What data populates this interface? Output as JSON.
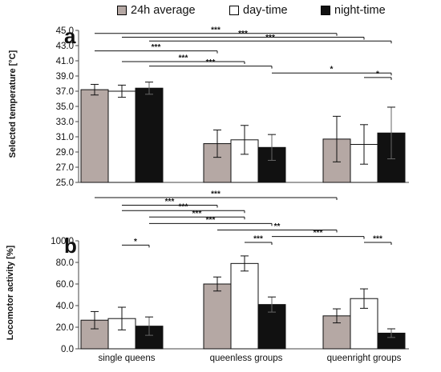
{
  "legend": [
    {
      "label": "24h average",
      "color": "#b5a8a4"
    },
    {
      "label": "day-time",
      "color": "#ffffff"
    },
    {
      "label": "night-time",
      "color": "#111111"
    }
  ],
  "chart_data": [
    {
      "type": "bar",
      "panel_letter": "a",
      "ylabel": "Selected temperature [°C]",
      "ylim": [
        25.0,
        45.0
      ],
      "yticks": [
        "25.0",
        "27.0",
        "29.0",
        "31.0",
        "33.0",
        "35.0",
        "37.0",
        "39.0",
        "41.0",
        "43.0",
        "45.0"
      ],
      "categories": [
        "single queens",
        "queenless groups",
        "queenright groups"
      ],
      "series": [
        {
          "name": "24h average",
          "values": [
            37.2,
            30.1,
            30.7
          ],
          "errors": [
            0.7,
            1.8,
            3.0
          ]
        },
        {
          "name": "day-time",
          "values": [
            37.0,
            30.6,
            30.0
          ],
          "errors": [
            0.8,
            1.9,
            2.6
          ]
        },
        {
          "name": "night-time",
          "values": [
            37.4,
            29.6,
            31.5
          ],
          "errors": [
            0.8,
            1.7,
            3.4
          ]
        }
      ],
      "significance": [
        {
          "from": [
            0,
            0
          ],
          "to": [
            2,
            0
          ],
          "y": 44.6,
          "label": "***"
        },
        {
          "from": [
            0,
            1
          ],
          "to": [
            2,
            1
          ],
          "y": 44.1,
          "label": "***"
        },
        {
          "from": [
            0,
            2
          ],
          "to": [
            2,
            2
          ],
          "y": 43.6,
          "label": "***"
        },
        {
          "from": [
            0,
            0
          ],
          "to": [
            1,
            0
          ],
          "y": 42.3,
          "label": "***"
        },
        {
          "from": [
            0,
            1
          ],
          "to": [
            1,
            1
          ],
          "y": 40.9,
          "label": "***"
        },
        {
          "from": [
            0,
            2
          ],
          "to": [
            1,
            2
          ],
          "y": 40.3,
          "label": "***"
        },
        {
          "from": [
            1,
            2
          ],
          "to": [
            2,
            2
          ],
          "y": 39.4,
          "label": "*"
        },
        {
          "from": [
            2,
            1
          ],
          "to": [
            2,
            2
          ],
          "y": 38.8,
          "label": "*"
        }
      ]
    },
    {
      "type": "bar",
      "panel_letter": "b",
      "ylabel": "Locomotor activity [%]",
      "ylim": [
        0.0,
        100.0
      ],
      "yticks": [
        "0.0",
        "20.0",
        "40.0",
        "60.0",
        "80.0",
        "100.0"
      ],
      "categories": [
        "single queens",
        "queenless groups",
        "queenright groups"
      ],
      "series": [
        {
          "name": "24h average",
          "values": [
            26.5,
            60.0,
            30.5
          ],
          "errors": [
            8.0,
            6.5,
            6.5
          ]
        },
        {
          "name": "day-time",
          "values": [
            28.0,
            79.0,
            46.5
          ],
          "errors": [
            10.5,
            7.0,
            9.0
          ]
        },
        {
          "name": "night-time",
          "values": [
            21.0,
            41.0,
            14.5
          ],
          "errors": [
            8.5,
            7.0,
            4.0
          ]
        }
      ],
      "significance": [
        {
          "from": [
            0,
            0
          ],
          "to": [
            2,
            0
          ],
          "y": 140,
          "label": "***"
        },
        {
          "from": [
            0,
            1
          ],
          "to": [
            1,
            0
          ],
          "y": 133,
          "label": "***"
        },
        {
          "from": [
            0,
            1
          ],
          "to": [
            1,
            1
          ],
          "y": 128,
          "label": "***"
        },
        {
          "from": [
            0,
            2
          ],
          "to": [
            1,
            1
          ],
          "y": 122,
          "label": "***"
        },
        {
          "from": [
            0,
            2
          ],
          "to": [
            1,
            2
          ],
          "y": 116,
          "label": "***"
        },
        {
          "from": [
            1,
            0
          ],
          "to": [
            2,
            0
          ],
          "y": 110,
          "label": "**"
        },
        {
          "from": [
            1,
            2
          ],
          "to": [
            2,
            1
          ],
          "y": 104,
          "label": "***"
        },
        {
          "from": [
            1,
            1
          ],
          "to": [
            1,
            2
          ],
          "y": 98.5,
          "label": "***"
        },
        {
          "from": [
            2,
            1
          ],
          "to": [
            2,
            2
          ],
          "y": 98.5,
          "label": "***"
        },
        {
          "from": [
            0,
            1
          ],
          "to": [
            0,
            2
          ],
          "y": 96,
          "label": "*"
        }
      ]
    }
  ]
}
